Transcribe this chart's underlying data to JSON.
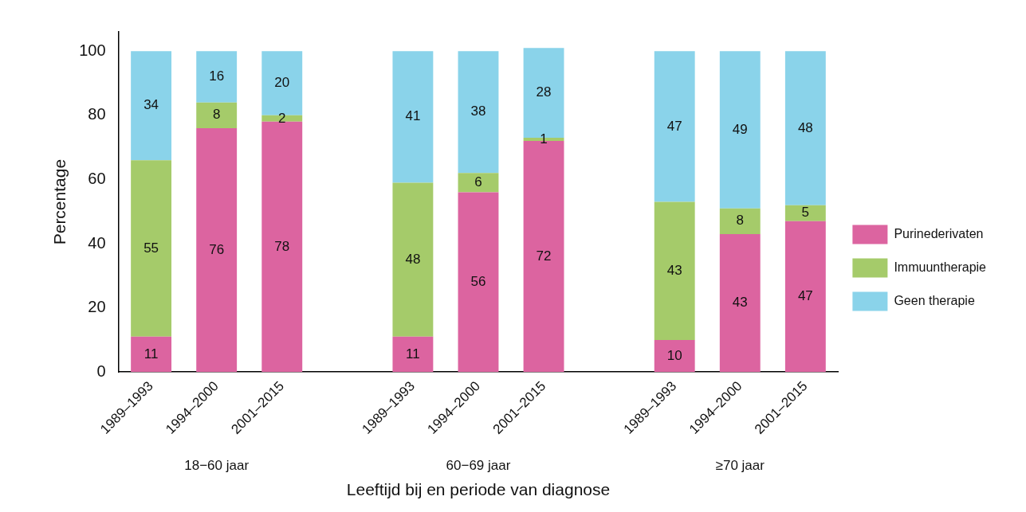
{
  "chart_data": {
    "type": "bar",
    "stacked": true,
    "xlabel": "Leeftijd bij en periode van diagnose",
    "ylabel": "Percentage",
    "categories": [
      "1989–1993",
      "1994–2000",
      "2001–2015",
      null,
      "1989–1993",
      "1994–2000",
      "2001–2015",
      null,
      "1989–1993",
      "1994–2000",
      "2001–2015"
    ],
    "series": [
      {
        "name": "Purinederivaten",
        "color": "#dc64a0",
        "values": [
          11,
          76,
          78,
          null,
          11,
          56,
          72,
          null,
          10,
          43,
          47
        ]
      },
      {
        "name": "Immuuntherapie",
        "color": "#a5cb6a",
        "values": [
          55,
          8,
          2,
          null,
          48,
          6,
          1,
          null,
          43,
          8,
          5
        ]
      },
      {
        "name": "Geen therapie",
        "color": "#8ad3ea",
        "values": [
          34,
          16,
          20,
          null,
          41,
          38,
          28,
          null,
          47,
          49,
          48
        ]
      }
    ],
    "annotations": [
      "18−60 jaar",
      "60−69 jaar",
      "≥70 jaar"
    ],
    "ylim": [
      0,
      106
    ],
    "yticks": [
      0,
      20,
      40,
      60,
      80,
      100
    ],
    "grid": false,
    "legend": "right",
    "data_labels": true
  }
}
